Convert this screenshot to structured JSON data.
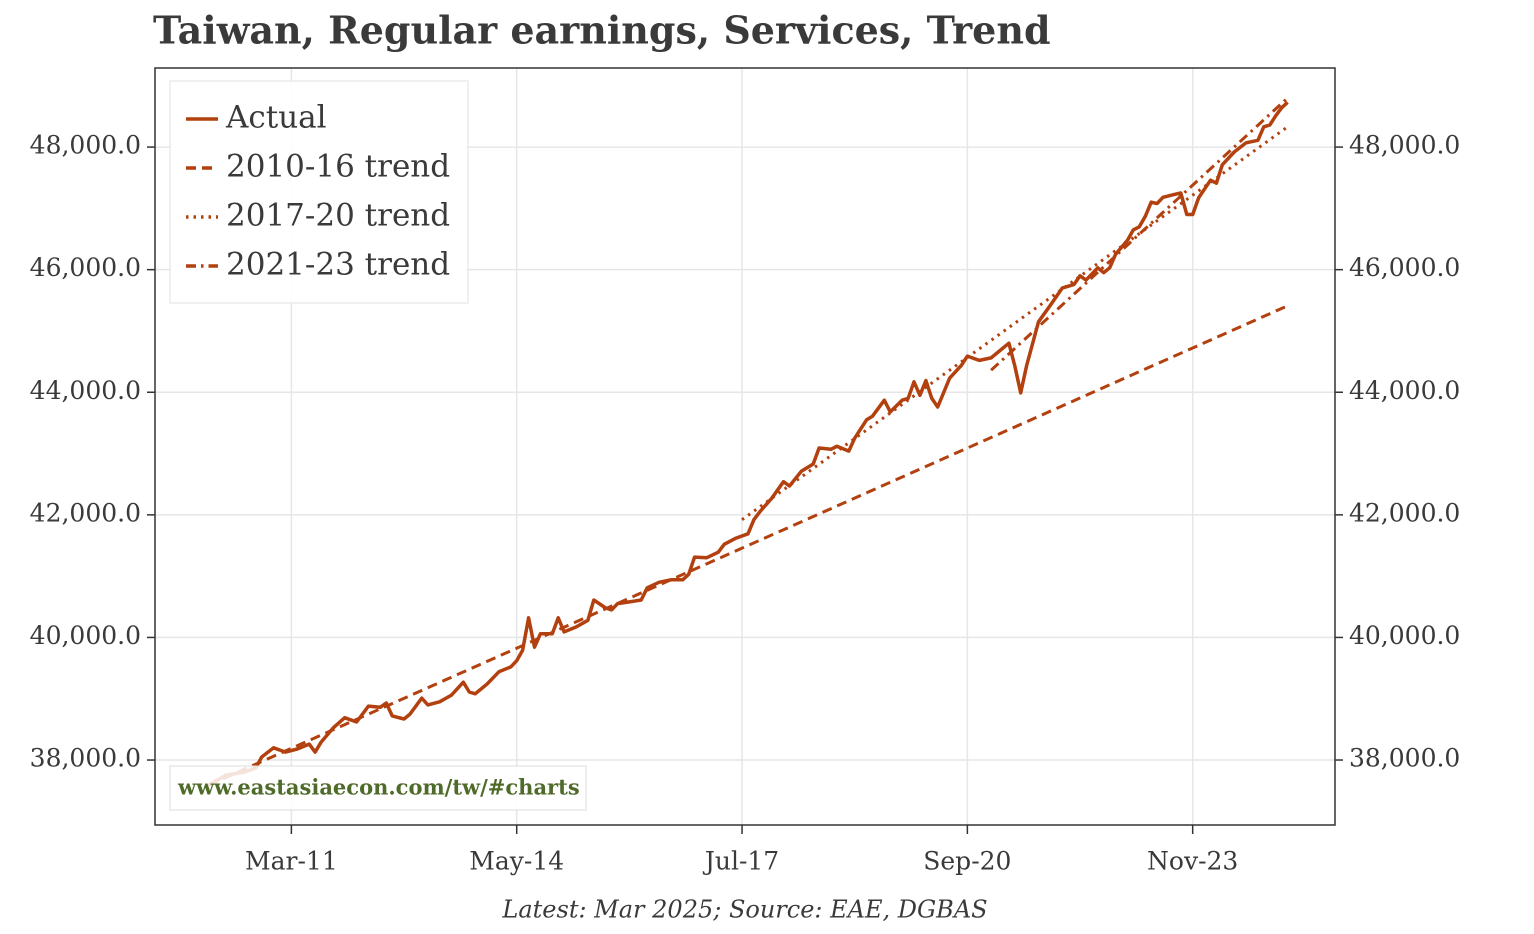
{
  "chart_data": {
    "type": "line",
    "title": "Taiwan, Regular earnings, Services, Trend",
    "footnote": "Latest: Mar 2025; Source: EAE, DGBAS",
    "watermark": "www.eastasiaecon.com/tw/#charts",
    "xlim": [
      "2009-04",
      "2025-11"
    ],
    "ylim": [
      36940,
      49290
    ],
    "xticks": [
      {
        "value": "2011-03",
        "label": "Mar-11"
      },
      {
        "value": "2014-05",
        "label": "May-14"
      },
      {
        "value": "2017-07",
        "label": "Jul-17"
      },
      {
        "value": "2020-09",
        "label": "Sep-20"
      },
      {
        "value": "2023-11",
        "label": "Nov-23"
      }
    ],
    "yticks": [
      {
        "value": 38000,
        "label": "38,000.0"
      },
      {
        "value": 40000,
        "label": "40,000.0"
      },
      {
        "value": 42000,
        "label": "42,000.0"
      },
      {
        "value": 44000,
        "label": "44,000.0"
      },
      {
        "value": 46000,
        "label": "46,000.0"
      },
      {
        "value": 48000,
        "label": "48,000.0"
      }
    ],
    "grid": true,
    "legend": "upper left",
    "series": [
      {
        "name": "Actual",
        "color": "#b3400f",
        "style": "solid",
        "x": [
          "2010-01",
          "2010-04",
          "2010-07",
          "2010-09",
          "2010-10",
          "2010-12",
          "2011-02",
          "2011-04",
          "2011-06",
          "2011-07",
          "2011-08",
          "2011-10",
          "2011-12",
          "2012-02",
          "2012-04",
          "2012-06",
          "2012-07",
          "2012-08",
          "2012-10",
          "2012-11",
          "2013-01",
          "2013-02",
          "2013-04",
          "2013-06",
          "2013-08",
          "2013-09",
          "2013-10",
          "2013-12",
          "2014-02",
          "2014-04",
          "2014-05",
          "2014-06",
          "2014-07",
          "2014-08",
          "2014-09",
          "2014-11",
          "2014-12",
          "2015-01",
          "2015-03",
          "2015-05",
          "2015-06",
          "2015-08",
          "2015-09",
          "2015-10",
          "2015-12",
          "2016-02",
          "2016-03",
          "2016-05",
          "2016-07",
          "2016-09",
          "2016-10",
          "2016-11",
          "2017-01",
          "2017-03",
          "2017-04",
          "2017-06",
          "2017-08",
          "2017-09",
          "2017-10",
          "2017-12",
          "2018-02",
          "2018-03",
          "2018-05",
          "2018-07",
          "2018-08",
          "2018-10",
          "2018-11",
          "2019-01",
          "2019-02",
          "2019-04",
          "2019-05",
          "2019-07",
          "2019-08",
          "2019-10",
          "2019-11",
          "2019-12",
          "2020-01",
          "2020-02",
          "2020-03",
          "2020-04",
          "2020-06",
          "2020-08",
          "2020-09",
          "2020-11",
          "2021-01",
          "2021-03",
          "2021-04",
          "2021-05",
          "2021-06",
          "2021-07",
          "2021-09",
          "2021-11",
          "2022-01",
          "2022-03",
          "2022-04",
          "2022-05",
          "2022-07",
          "2022-08",
          "2022-09",
          "2022-10",
          "2022-12",
          "2023-01",
          "2023-02",
          "2023-03",
          "2023-04",
          "2023-05",
          "2023-06",
          "2023-08",
          "2023-09",
          "2023-10",
          "2023-11",
          "2023-12",
          "2024-02",
          "2024-03",
          "2024-04",
          "2024-06",
          "2024-08",
          "2024-10",
          "2024-11",
          "2024-12",
          "2025-01",
          "2025-02",
          "2025-03"
        ],
        "values": [
          37590,
          37755,
          37800,
          37870,
          38050,
          38200,
          38130,
          38180,
          38260,
          38130,
          38290,
          38520,
          38690,
          38620,
          38880,
          38860,
          38930,
          38720,
          38670,
          38750,
          39010,
          38900,
          38950,
          39060,
          39270,
          39110,
          39080,
          39240,
          39440,
          39520,
          39620,
          39790,
          40320,
          39840,
          40060,
          40060,
          40320,
          40090,
          40170,
          40280,
          40610,
          40480,
          40450,
          40550,
          40580,
          40610,
          40810,
          40900,
          40940,
          40940,
          41030,
          41310,
          41300,
          41390,
          41520,
          41620,
          41690,
          41920,
          42050,
          42270,
          42540,
          42470,
          42710,
          42830,
          43090,
          43070,
          43120,
          43040,
          43250,
          43550,
          43610,
          43870,
          43680,
          43870,
          43900,
          44170,
          43950,
          44190,
          43900,
          43760,
          44230,
          44440,
          44590,
          44520,
          44560,
          44720,
          44800,
          44430,
          43990,
          44440,
          45150,
          45420,
          45700,
          45760,
          45900,
          45830,
          46030,
          45950,
          46030,
          46250,
          46480,
          46650,
          46700,
          46870,
          47100,
          47080,
          47180,
          47230,
          47250,
          46900,
          46900,
          47170,
          47460,
          47410,
          47710,
          47920,
          48070,
          48110,
          48330,
          48360,
          48510,
          48640,
          48730
        ]
      },
      {
        "name": "2010-16 trend",
        "color": "#b3400f",
        "style": "dashed",
        "x": [
          "2010-01",
          "2025-03"
        ],
        "values": [
          37590,
          45410
        ]
      },
      {
        "name": "2017-20 trend",
        "color": "#b3400f",
        "style": "dotted",
        "x": [
          "2017-07",
          "2025-03"
        ],
        "values": [
          41920,
          48330
        ]
      },
      {
        "name": "2021-23 trend",
        "color": "#b3400f",
        "style": "dashdot",
        "x": [
          "2021-01",
          "2025-03"
        ],
        "values": [
          44360,
          48800
        ]
      }
    ]
  }
}
